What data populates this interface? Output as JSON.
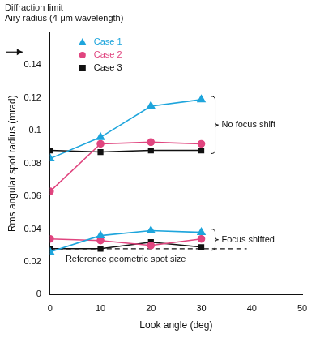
{
  "chart_data": {
    "type": "line",
    "x_label": "Look angle (deg)",
    "y_label": "Rms angular spot radius (mrad)",
    "x": [
      0,
      10,
      20,
      30
    ],
    "xlim": [
      0,
      50
    ],
    "xticks": [
      0,
      10,
      20,
      30,
      40,
      50
    ],
    "ylim": [
      0,
      0.16
    ],
    "yticks": [
      0,
      0.02,
      0.04,
      0.06,
      0.08,
      0.1,
      0.12,
      0.14
    ],
    "grid": false,
    "legend": "upper left",
    "series": [
      {
        "name": "Case 1",
        "color": "#1ea5dc",
        "marker": "triangle",
        "group": "No focus shift",
        "values": [
          0.083,
          0.096,
          0.115,
          0.119
        ]
      },
      {
        "name": "Case 2",
        "color": "#e0457f",
        "marker": "circle",
        "group": "No focus shift",
        "values": [
          0.063,
          0.092,
          0.093,
          0.092
        ]
      },
      {
        "name": "Case 3",
        "color": "#111111",
        "marker": "square",
        "group": "No focus shift",
        "values": [
          0.088,
          0.087,
          0.088,
          0.088
        ]
      },
      {
        "name": "Case 1",
        "color": "#1ea5dc",
        "marker": "triangle",
        "group": "Focus shifted",
        "values": [
          0.026,
          0.036,
          0.039,
          0.038
        ]
      },
      {
        "name": "Case 2",
        "color": "#e0457f",
        "marker": "circle",
        "group": "Focus shifted",
        "values": [
          0.034,
          0.033,
          0.03,
          0.034
        ]
      },
      {
        "name": "Case 3",
        "color": "#111111",
        "marker": "square",
        "group": "Focus shifted",
        "values": [
          0.028,
          0.028,
          0.032,
          0.029
        ]
      }
    ],
    "reference_line": {
      "label": "Reference geometric spot size",
      "value": 0.028,
      "x": [
        0,
        39
      ],
      "line_style": "dashed",
      "color": "#111111"
    },
    "diffraction_limit": {
      "text": [
        "Diffraction limit",
        "Airy radius (4-μm wavelength)"
      ],
      "value": 0.148
    }
  }
}
